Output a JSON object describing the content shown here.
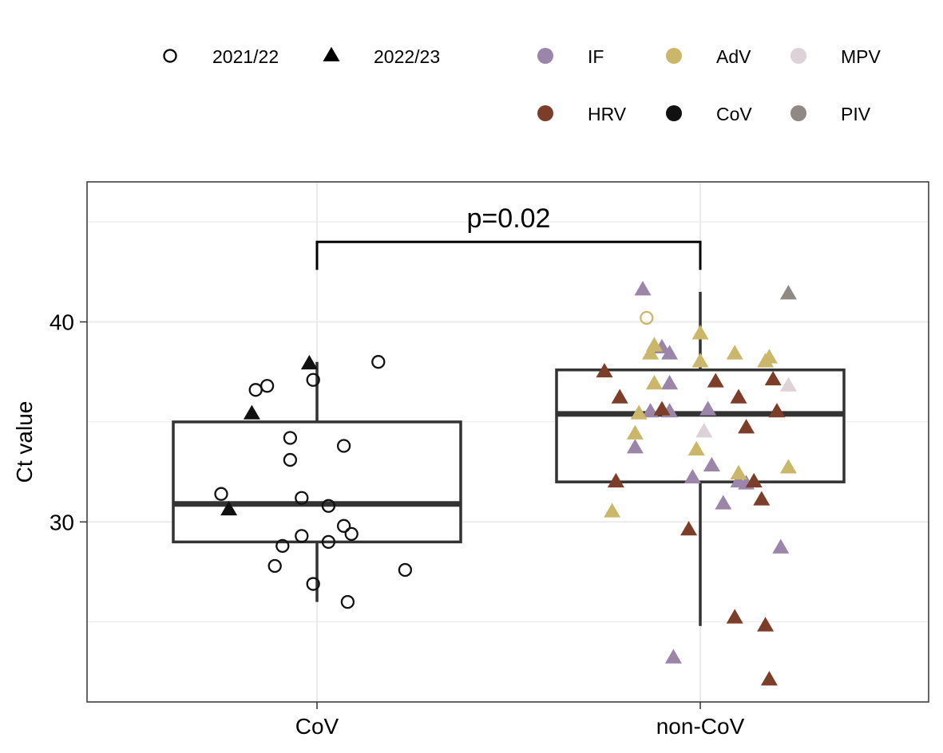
{
  "chart_data": {
    "type": "boxplot",
    "title": "",
    "xlabel": "",
    "ylabel": "Ct value",
    "categories": [
      "CoV",
      "non-CoV"
    ],
    "y_ticks": [
      30,
      40
    ],
    "ylim": [
      21,
      47
    ],
    "grid": true,
    "legend_placement": "top",
    "annotation": {
      "text": "p=0.02",
      "between": [
        "CoV",
        "non-CoV"
      ],
      "bracket_y": 44,
      "bracket_low": 42.6
    },
    "legend": {
      "shapes": [
        {
          "label": "2021/22",
          "shape": "open-circle"
        },
        {
          "label": "2022/23",
          "shape": "triangle"
        }
      ],
      "colors": [
        {
          "label": "IF",
          "color": "#9b86a9"
        },
        {
          "label": "AdV",
          "color": "#cbb76a"
        },
        {
          "label": "MPV",
          "color": "#dcd2d7"
        },
        {
          "label": "HRV",
          "color": "#7d3e29"
        },
        {
          "label": "CoV",
          "color": "#111111"
        },
        {
          "label": "PIV",
          "color": "#8f8883"
        }
      ]
    },
    "boxes": [
      {
        "category": "CoV",
        "min": 26.0,
        "q1": 29.0,
        "median": 30.9,
        "q3": 35.0,
        "max": 38.0
      },
      {
        "category": "non-CoV",
        "min": 24.8,
        "q1": 32.0,
        "median": 35.4,
        "q3": 37.6,
        "max": 41.5
      }
    ],
    "points": [
      {
        "category": "CoV",
        "jitter": -0.25,
        "y": 31.4,
        "shape": "open-circle",
        "virus": "CoV"
      },
      {
        "category": "CoV",
        "jitter": -0.16,
        "y": 36.6,
        "shape": "open-circle",
        "virus": "CoV"
      },
      {
        "category": "CoV",
        "jitter": -0.13,
        "y": 36.8,
        "shape": "open-circle",
        "virus": "CoV"
      },
      {
        "category": "CoV",
        "jitter": 0.16,
        "y": 38.0,
        "shape": "open-circle",
        "virus": "CoV"
      },
      {
        "category": "CoV",
        "jitter": -0.01,
        "y": 37.1,
        "shape": "open-circle",
        "virus": "CoV"
      },
      {
        "category": "CoV",
        "jitter": -0.07,
        "y": 34.2,
        "shape": "open-circle",
        "virus": "CoV"
      },
      {
        "category": "CoV",
        "jitter": -0.07,
        "y": 33.1,
        "shape": "open-circle",
        "virus": "CoV"
      },
      {
        "category": "CoV",
        "jitter": 0.07,
        "y": 33.8,
        "shape": "open-circle",
        "virus": "CoV"
      },
      {
        "category": "CoV",
        "jitter": -0.04,
        "y": 31.2,
        "shape": "open-circle",
        "virus": "CoV"
      },
      {
        "category": "CoV",
        "jitter": 0.03,
        "y": 30.8,
        "shape": "open-circle",
        "virus": "CoV"
      },
      {
        "category": "CoV",
        "jitter": 0.07,
        "y": 29.8,
        "shape": "open-circle",
        "virus": "CoV"
      },
      {
        "category": "CoV",
        "jitter": 0.09,
        "y": 29.4,
        "shape": "open-circle",
        "virus": "CoV"
      },
      {
        "category": "CoV",
        "jitter": -0.04,
        "y": 29.3,
        "shape": "open-circle",
        "virus": "CoV"
      },
      {
        "category": "CoV",
        "jitter": 0.03,
        "y": 29.0,
        "shape": "open-circle",
        "virus": "CoV"
      },
      {
        "category": "CoV",
        "jitter": -0.09,
        "y": 28.8,
        "shape": "open-circle",
        "virus": "CoV"
      },
      {
        "category": "CoV",
        "jitter": -0.11,
        "y": 27.8,
        "shape": "open-circle",
        "virus": "CoV"
      },
      {
        "category": "CoV",
        "jitter": 0.23,
        "y": 27.6,
        "shape": "open-circle",
        "virus": "CoV"
      },
      {
        "category": "CoV",
        "jitter": -0.01,
        "y": 26.9,
        "shape": "open-circle",
        "virus": "CoV"
      },
      {
        "category": "CoV",
        "jitter": 0.08,
        "y": 26.0,
        "shape": "open-circle",
        "virus": "CoV"
      },
      {
        "category": "CoV",
        "jitter": -0.02,
        "y": 37.9,
        "shape": "triangle",
        "virus": "CoV"
      },
      {
        "category": "CoV",
        "jitter": -0.17,
        "y": 35.4,
        "shape": "triangle",
        "virus": "CoV"
      },
      {
        "category": "CoV",
        "jitter": -0.23,
        "y": 30.6,
        "shape": "triangle",
        "virus": "CoV"
      },
      {
        "category": "non-CoV",
        "jitter": -0.15,
        "y": 41.6,
        "shape": "triangle",
        "virus": "IF"
      },
      {
        "category": "non-CoV",
        "jitter": -0.1,
        "y": 38.7,
        "shape": "triangle",
        "virus": "IF"
      },
      {
        "category": "non-CoV",
        "jitter": -0.08,
        "y": 38.4,
        "shape": "triangle",
        "virus": "IF"
      },
      {
        "category": "non-CoV",
        "jitter": -0.08,
        "y": 36.9,
        "shape": "triangle",
        "virus": "IF"
      },
      {
        "category": "non-CoV",
        "jitter": -0.13,
        "y": 35.5,
        "shape": "triangle",
        "virus": "IF"
      },
      {
        "category": "non-CoV",
        "jitter": -0.08,
        "y": 35.5,
        "shape": "triangle",
        "virus": "IF"
      },
      {
        "category": "non-CoV",
        "jitter": 0.02,
        "y": 35.6,
        "shape": "triangle",
        "virus": "IF"
      },
      {
        "category": "non-CoV",
        "jitter": -0.17,
        "y": 33.7,
        "shape": "triangle",
        "virus": "IF"
      },
      {
        "category": "non-CoV",
        "jitter": 0.03,
        "y": 32.8,
        "shape": "triangle",
        "virus": "IF"
      },
      {
        "category": "non-CoV",
        "jitter": -0.02,
        "y": 32.2,
        "shape": "triangle",
        "virus": "IF"
      },
      {
        "category": "non-CoV",
        "jitter": 0.1,
        "y": 32.0,
        "shape": "triangle",
        "virus": "IF"
      },
      {
        "category": "non-CoV",
        "jitter": 0.12,
        "y": 31.9,
        "shape": "triangle",
        "virus": "IF"
      },
      {
        "category": "non-CoV",
        "jitter": 0.06,
        "y": 30.9,
        "shape": "triangle",
        "virus": "IF"
      },
      {
        "category": "non-CoV",
        "jitter": 0.21,
        "y": 28.7,
        "shape": "triangle",
        "virus": "IF"
      },
      {
        "category": "non-CoV",
        "jitter": -0.07,
        "y": 23.2,
        "shape": "triangle",
        "virus": "IF"
      },
      {
        "category": "non-CoV",
        "jitter": -0.14,
        "y": 40.2,
        "shape": "open-circle",
        "virus": "AdV"
      },
      {
        "category": "non-CoV",
        "jitter": 0.0,
        "y": 39.4,
        "shape": "triangle",
        "virus": "AdV"
      },
      {
        "category": "non-CoV",
        "jitter": -0.12,
        "y": 38.8,
        "shape": "triangle",
        "virus": "AdV"
      },
      {
        "category": "non-CoV",
        "jitter": -0.13,
        "y": 38.4,
        "shape": "triangle",
        "virus": "AdV"
      },
      {
        "category": "non-CoV",
        "jitter": 0.09,
        "y": 38.4,
        "shape": "triangle",
        "virus": "AdV"
      },
      {
        "category": "non-CoV",
        "jitter": 0.18,
        "y": 38.2,
        "shape": "triangle",
        "virus": "AdV"
      },
      {
        "category": "non-CoV",
        "jitter": 0.17,
        "y": 38.0,
        "shape": "triangle",
        "virus": "AdV"
      },
      {
        "category": "non-CoV",
        "jitter": 0.0,
        "y": 38.0,
        "shape": "triangle",
        "virus": "AdV"
      },
      {
        "category": "non-CoV",
        "jitter": -0.12,
        "y": 36.9,
        "shape": "triangle",
        "virus": "AdV"
      },
      {
        "category": "non-CoV",
        "jitter": -0.16,
        "y": 35.4,
        "shape": "triangle",
        "virus": "AdV"
      },
      {
        "category": "non-CoV",
        "jitter": -0.17,
        "y": 34.4,
        "shape": "triangle",
        "virus": "AdV"
      },
      {
        "category": "non-CoV",
        "jitter": -0.01,
        "y": 33.6,
        "shape": "triangle",
        "virus": "AdV"
      },
      {
        "category": "non-CoV",
        "jitter": 0.1,
        "y": 32.4,
        "shape": "triangle",
        "virus": "AdV"
      },
      {
        "category": "non-CoV",
        "jitter": 0.23,
        "y": 32.7,
        "shape": "triangle",
        "virus": "AdV"
      },
      {
        "category": "non-CoV",
        "jitter": -0.23,
        "y": 30.5,
        "shape": "triangle",
        "virus": "AdV"
      },
      {
        "category": "non-CoV",
        "jitter": 0.23,
        "y": 36.8,
        "shape": "triangle",
        "virus": "MPV"
      },
      {
        "category": "non-CoV",
        "jitter": 0.01,
        "y": 34.5,
        "shape": "triangle",
        "virus": "MPV"
      },
      {
        "category": "non-CoV",
        "jitter": -0.25,
        "y": 37.5,
        "shape": "triangle",
        "virus": "HRV"
      },
      {
        "category": "non-CoV",
        "jitter": 0.04,
        "y": 37.0,
        "shape": "triangle",
        "virus": "HRV"
      },
      {
        "category": "non-CoV",
        "jitter": 0.19,
        "y": 37.1,
        "shape": "triangle",
        "virus": "HRV"
      },
      {
        "category": "non-CoV",
        "jitter": -0.21,
        "y": 36.2,
        "shape": "triangle",
        "virus": "HRV"
      },
      {
        "category": "non-CoV",
        "jitter": 0.1,
        "y": 36.2,
        "shape": "triangle",
        "virus": "HRV"
      },
      {
        "category": "non-CoV",
        "jitter": -0.1,
        "y": 35.6,
        "shape": "triangle",
        "virus": "HRV"
      },
      {
        "category": "non-CoV",
        "jitter": 0.2,
        "y": 35.5,
        "shape": "triangle",
        "virus": "HRV"
      },
      {
        "category": "non-CoV",
        "jitter": 0.12,
        "y": 34.7,
        "shape": "triangle",
        "virus": "HRV"
      },
      {
        "category": "non-CoV",
        "jitter": -0.22,
        "y": 32.0,
        "shape": "triangle",
        "virus": "HRV"
      },
      {
        "category": "non-CoV",
        "jitter": 0.14,
        "y": 32.0,
        "shape": "triangle",
        "virus": "HRV"
      },
      {
        "category": "non-CoV",
        "jitter": 0.16,
        "y": 31.1,
        "shape": "triangle",
        "virus": "HRV"
      },
      {
        "category": "non-CoV",
        "jitter": -0.03,
        "y": 29.6,
        "shape": "triangle",
        "virus": "HRV"
      },
      {
        "category": "non-CoV",
        "jitter": 0.09,
        "y": 25.2,
        "shape": "triangle",
        "virus": "HRV"
      },
      {
        "category": "non-CoV",
        "jitter": 0.17,
        "y": 24.8,
        "shape": "triangle",
        "virus": "HRV"
      },
      {
        "category": "non-CoV",
        "jitter": 0.18,
        "y": 22.1,
        "shape": "triangle",
        "virus": "HRV"
      },
      {
        "category": "non-CoV",
        "jitter": 0.23,
        "y": 41.4,
        "shape": "triangle",
        "virus": "PIV"
      }
    ]
  }
}
